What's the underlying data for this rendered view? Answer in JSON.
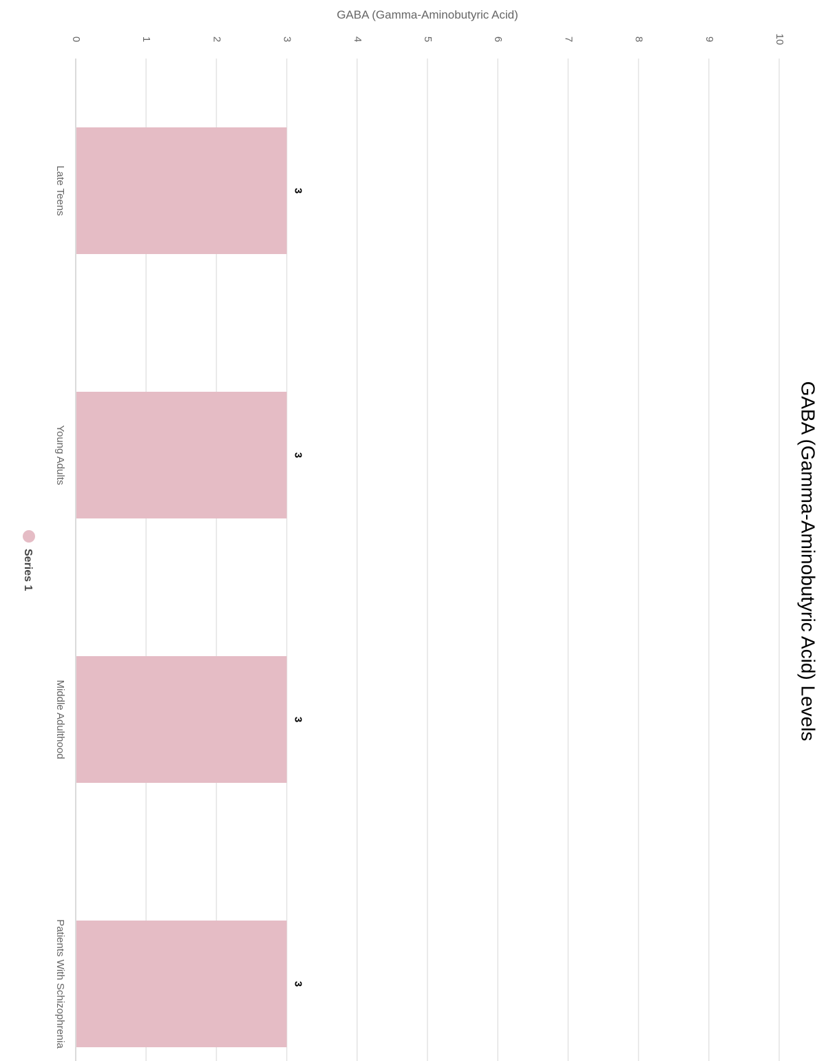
{
  "chart_data": {
    "type": "bar",
    "orientation": "horizontal",
    "title": "GABA (Gamma-Aminobutyric Acid) Levels",
    "xlabel": "GABA (Gamma-Aminobutyric Acid)",
    "ylabel": "",
    "xlim": [
      0,
      10
    ],
    "ticks": [
      "0",
      "1",
      "2",
      "3",
      "4",
      "5",
      "6",
      "7",
      "8",
      "9",
      "10"
    ],
    "categories": [
      "Late Teens",
      "Young Adults",
      "Middle Adulthood",
      "Patients With Schizophrenia"
    ],
    "series": [
      {
        "name": "Series 1",
        "values": [
          3,
          3,
          3,
          3
        ],
        "color": "#e5bcc5"
      }
    ],
    "grid": true,
    "legend": "bottom",
    "rotation": "rotated 90 degrees clockwise"
  }
}
